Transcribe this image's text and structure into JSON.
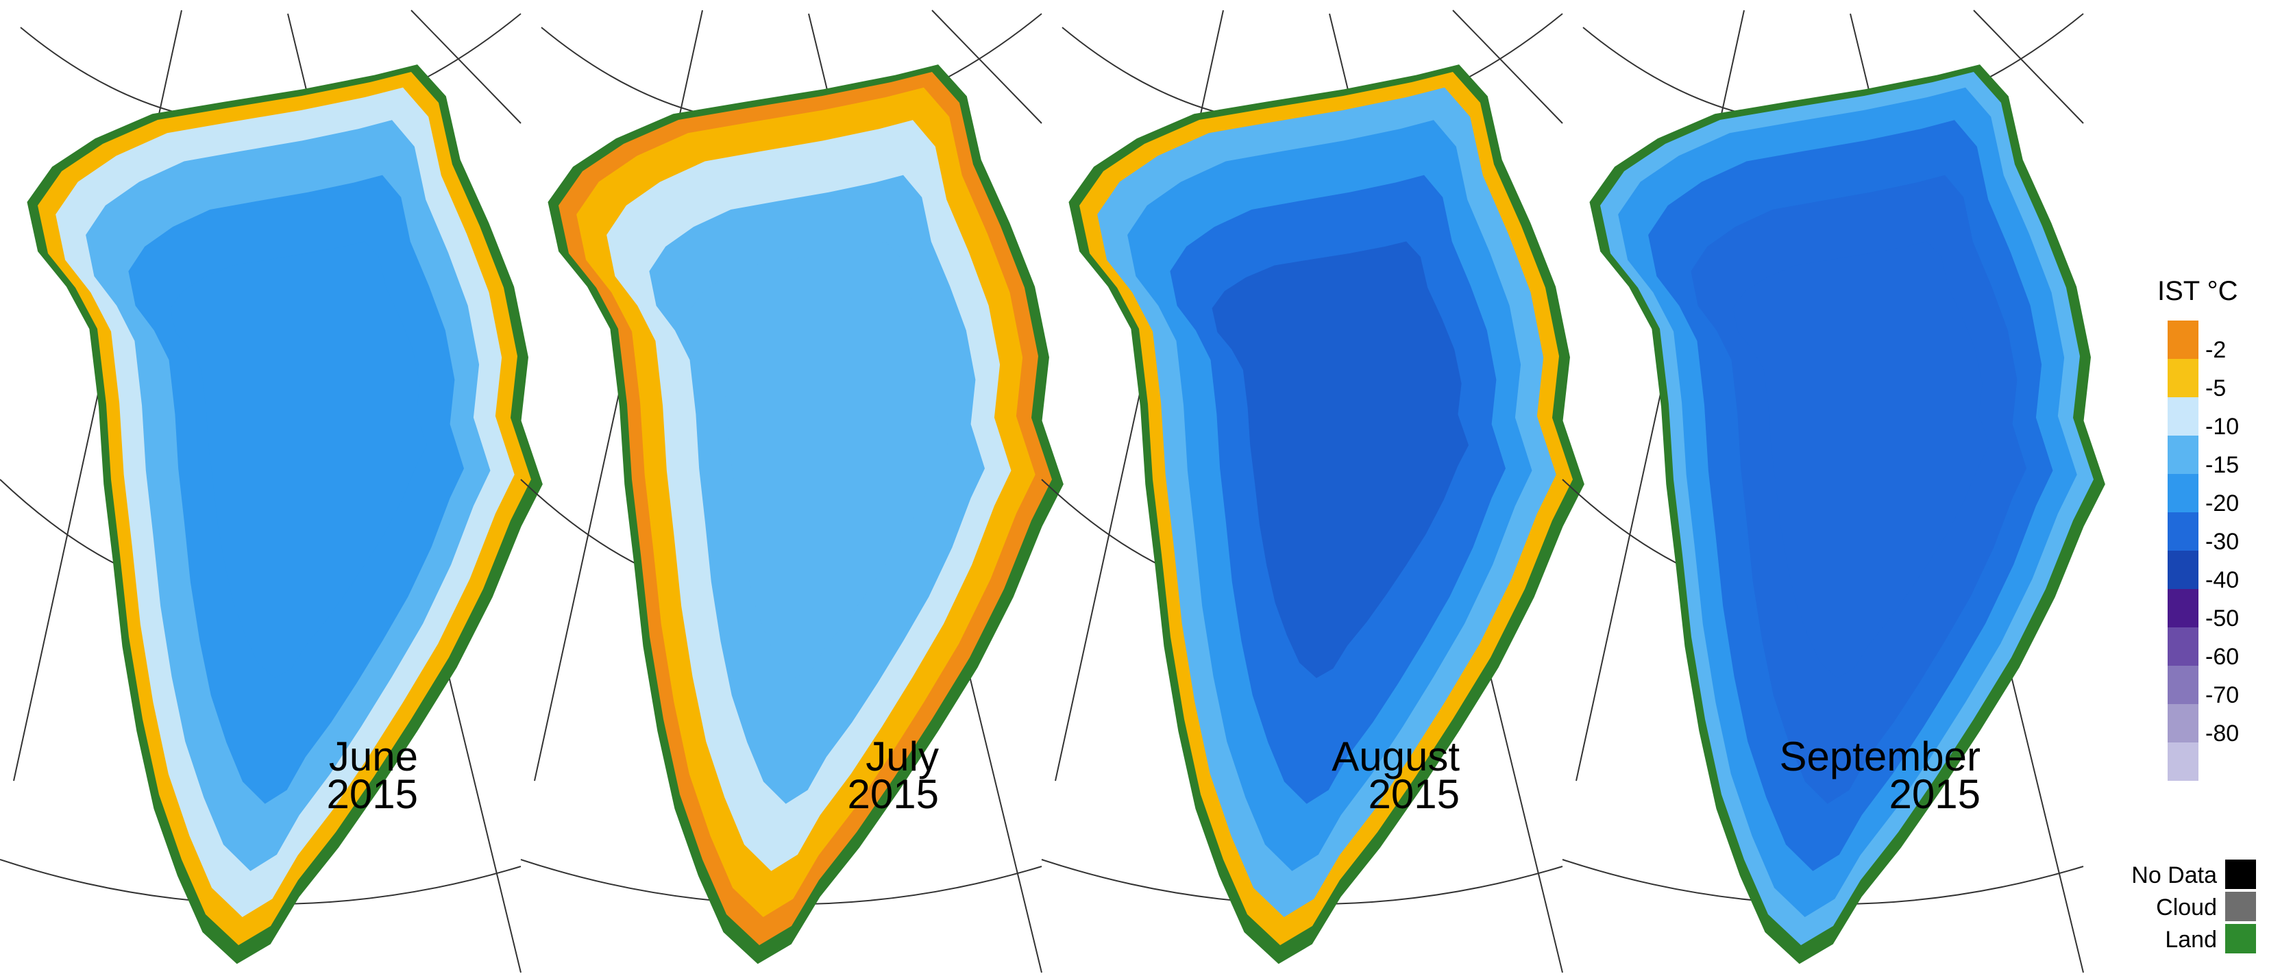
{
  "panels": [
    {
      "month": "June",
      "year": "2015",
      "zones": {
        "coast": "#f7b500",
        "edge": "#c6e6f8",
        "mid": "#5ab5f2",
        "core": "#2f98ee",
        "deep": "#2f98ee"
      }
    },
    {
      "month": "July",
      "year": "2015",
      "zones": {
        "coast": "#f08c16",
        "edge": "#f7b500",
        "mid": "#c6e6f8",
        "core": "#5ab5f2",
        "deep": "#5ab5f2"
      }
    },
    {
      "month": "August",
      "year": "2015",
      "zones": {
        "coast": "#f7b500",
        "edge": "#5ab5f2",
        "mid": "#2f98ee",
        "core": "#1f72e0",
        "deep": "#1b5fcf"
      }
    },
    {
      "month": "September",
      "year": "2015",
      "zones": {
        "coast": "#5ab5f2",
        "edge": "#2f98ee",
        "mid": "#1f72e0",
        "core": "#1f6adb",
        "deep": "#1f6adb"
      }
    }
  ],
  "land_color": "#2e7d2a",
  "legend": {
    "title": "IST °C",
    "bins": [
      {
        "label": "-2",
        "color": "#f08c16"
      },
      {
        "label": "-5",
        "color": "#f7c315"
      },
      {
        "label": "-10",
        "color": "#c9e7fb"
      },
      {
        "label": "-15",
        "color": "#5ab5f2"
      },
      {
        "label": "-20",
        "color": "#2f98ee"
      },
      {
        "label": "-30",
        "color": "#1f6adb"
      },
      {
        "label": "-40",
        "color": "#1846b3"
      },
      {
        "label": "-50",
        "color": "#4a1a8c"
      },
      {
        "label": "-60",
        "color": "#6a4ca8"
      },
      {
        "label": "-70",
        "color": "#8677bb"
      },
      {
        "label": "-80",
        "color": "#a49ccc"
      },
      {
        "label": "",
        "color": "#c3c0e2"
      }
    ],
    "categories": [
      {
        "label": "No Data",
        "color": "#000000"
      },
      {
        "label": "Cloud",
        "color": "#6e6e6e"
      },
      {
        "label": "Land",
        "color": "#2e8b2e"
      }
    ]
  }
}
